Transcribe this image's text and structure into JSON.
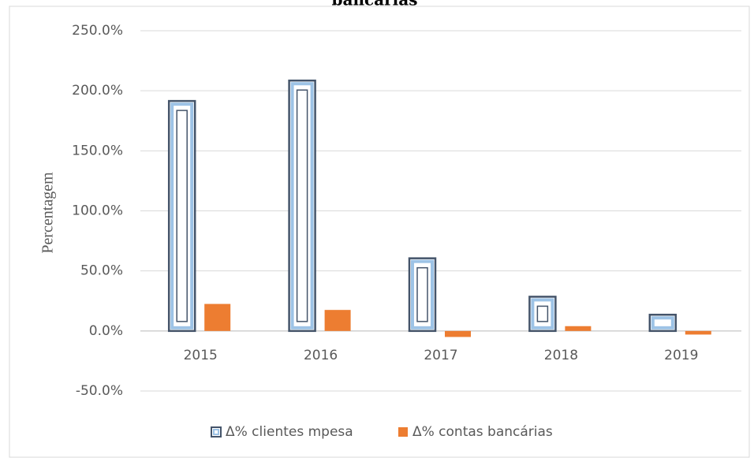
{
  "chart_data": {
    "type": "bar",
    "title": "bancárias",
    "y_label": "Percentagem",
    "categories": [
      "2015",
      "2016",
      "2017",
      "2018",
      "2019"
    ],
    "series": [
      {
        "name": "Δ% clientes mpesa",
        "color": "#44546a",
        "values": [
          191.5,
          208.5,
          60.5,
          28.5,
          13.5
        ]
      },
      {
        "name": "Δ% contas bancárias",
        "color": "#ed7d31",
        "values": [
          22.5,
          17.5,
          -5,
          4,
          -3
        ]
      }
    ],
    "ylim": [
      -50,
      250
    ],
    "yticks": [
      {
        "value": -50,
        "label": "-50.0%"
      },
      {
        "value": 0,
        "label": "0.0%"
      },
      {
        "value": 50,
        "label": "50.0%"
      },
      {
        "value": 100,
        "label": "100.0%"
      },
      {
        "value": 150,
        "label": "150.0%"
      },
      {
        "value": 200,
        "label": "200.0%"
      },
      {
        "value": 250,
        "label": "250.0%"
      }
    ],
    "grid": true,
    "legend": "bottom"
  }
}
